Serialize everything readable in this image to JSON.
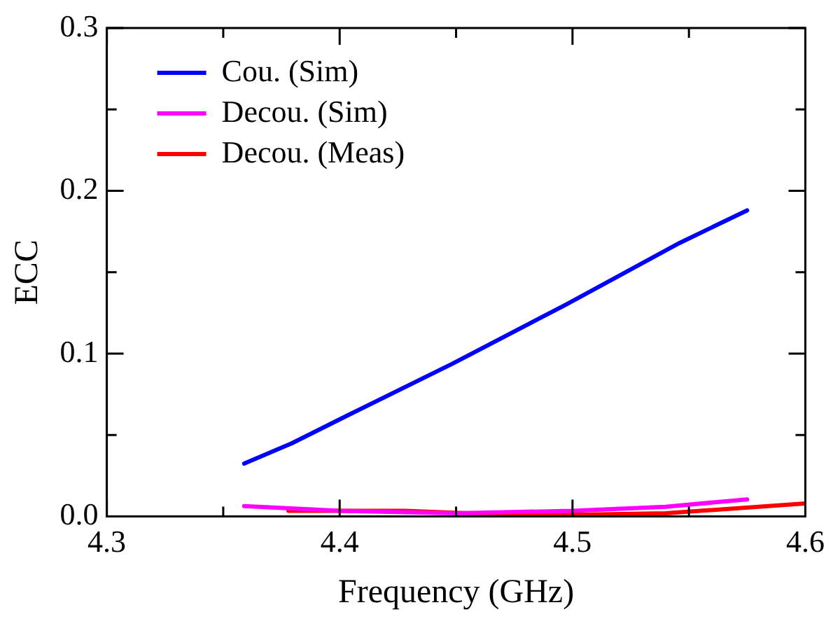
{
  "chart_data": {
    "type": "line",
    "xlabel": "Frequency (GHz)",
    "ylabel": "ECC",
    "xlim": [
      4.3,
      4.6
    ],
    "xticks": [
      4.3,
      {
        "value": 4.35,
        "label": null
      },
      4.4,
      {
        "value": 4.45,
        "label": null
      },
      4.5,
      {
        "value": 4.55,
        "label": null
      },
      4.6
    ],
    "ylim": [
      0,
      0.3
    ],
    "yticks": [
      {
        "value": 0,
        "label": "0.0"
      },
      {
        "value": 0.05,
        "label": null
      },
      0.1,
      {
        "value": 0.15,
        "label": null
      },
      0.2,
      {
        "value": 0.25,
        "label": null
      },
      0.3
    ],
    "grid": false,
    "legend": "top left",
    "marker": "none",
    "line_style": "solid",
    "series": [
      {
        "name": "Cou. (Sim)",
        "color": "#0000ff",
        "x": [
          4.359,
          4.3795,
          4.404,
          4.448,
          4.497,
          4.546,
          4.575
        ],
        "values": [
          0.0325,
          0.045,
          0.0625,
          0.0935,
          0.13,
          0.168,
          0.188
        ]
      },
      {
        "name": "Decou. (Sim)",
        "color": "#ff00ff",
        "x": [
          4.359,
          4.4,
          4.45,
          4.5,
          4.54,
          4.575
        ],
        "values": [
          0.0064,
          0.0035,
          0.002,
          0.0035,
          0.006,
          0.0105
        ]
      },
      {
        "name": "Decou. (Meas)",
        "color": "#ff0000",
        "x": [
          4.378,
          4.428,
          4.48,
          4.54,
          4.6
        ],
        "values": [
          0.0035,
          0.0035,
          0.0006,
          0.002,
          0.008
        ]
      }
    ]
  }
}
